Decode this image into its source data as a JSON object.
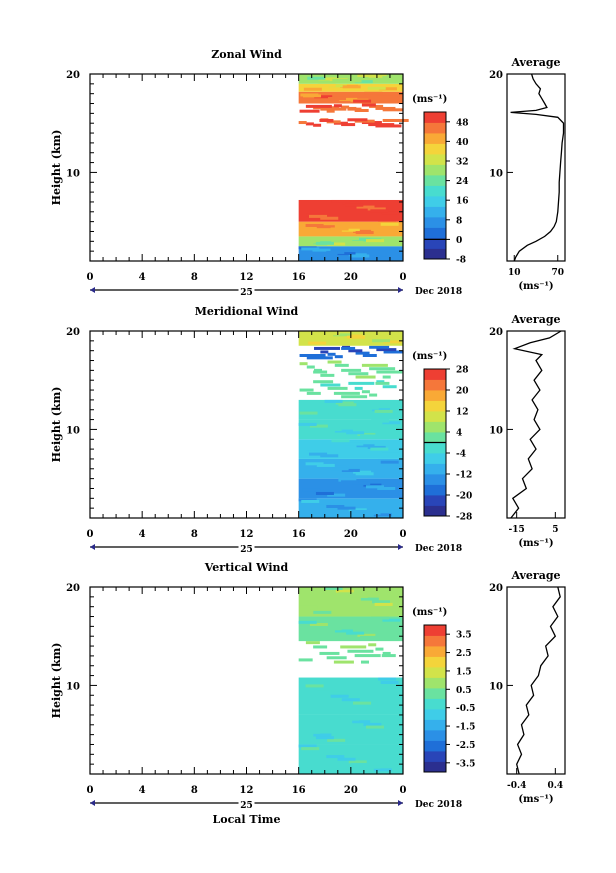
{
  "chart_data": [
    {
      "type": "heatmap",
      "title": "Zonal Wind",
      "ylabel": "Height (km)",
      "ylim": [
        1,
        20
      ],
      "yticks": [
        "10",
        "20"
      ],
      "xlim": [
        0,
        24
      ],
      "xticks": [
        "0",
        "4",
        "8",
        "12",
        "16",
        "20",
        "0"
      ],
      "date_day": "25",
      "date_label": "Dec 2018",
      "data_start_hour": 16,
      "colorbar": {
        "unit": "(ms⁻¹)",
        "vmin": -8,
        "vmax": 52,
        "ticks": [
          "-8",
          "0",
          "8",
          "16",
          "24",
          "32",
          "40",
          "48"
        ],
        "zero_line": 0
      },
      "layers": [
        {
          "z0": 1,
          "z1": 2.5,
          "value": 8
        },
        {
          "z0": 2.5,
          "z1": 3.5,
          "value": 28
        },
        {
          "z0": 3.5,
          "z1": 5,
          "value": 42
        },
        {
          "z0": 5,
          "z1": 7.2,
          "value": 48
        },
        {
          "z0": 14.5,
          "z1": 15.5,
          "value": 48,
          "sparse": true
        },
        {
          "z0": 16,
          "z1": 17,
          "value": 46,
          "sparse": true
        },
        {
          "z0": 17,
          "z1": 18.2,
          "value": 44
        },
        {
          "z0": 18.2,
          "z1": 19,
          "value": 38
        },
        {
          "z0": 19,
          "z1": 20,
          "value": 30
        }
      ],
      "profile": {
        "title": "Average",
        "xlim": [
          0,
          80
        ],
        "xticks": [
          "10",
          "70"
        ],
        "xlabel": "(ms⁻¹)",
        "points": [
          [
            10,
            1
          ],
          [
            12,
            1.4
          ],
          [
            17,
            2
          ],
          [
            28,
            2.6
          ],
          [
            40,
            3
          ],
          [
            52,
            3.5
          ],
          [
            60,
            4
          ],
          [
            65,
            4.5
          ],
          [
            68,
            5
          ],
          [
            70,
            6
          ],
          [
            71,
            7
          ],
          [
            72,
            8
          ],
          [
            72,
            9
          ],
          [
            73,
            10
          ],
          [
            74,
            11
          ],
          [
            75,
            12
          ],
          [
            76,
            13
          ],
          [
            78,
            14
          ],
          [
            78,
            15
          ],
          [
            70,
            15.6
          ],
          [
            40,
            15.9
          ],
          [
            5,
            16.1
          ],
          [
            40,
            16.3
          ],
          [
            55,
            16.6
          ],
          [
            52,
            17
          ],
          [
            48,
            17.5
          ],
          [
            44,
            18
          ],
          [
            46,
            18.5
          ],
          [
            40,
            19
          ],
          [
            36,
            19.5
          ],
          [
            34,
            20
          ]
        ]
      }
    },
    {
      "type": "heatmap",
      "title": "Meridional Wind",
      "ylabel": "Height (km)",
      "ylim": [
        1,
        20
      ],
      "yticks": [
        "10",
        "20"
      ],
      "xlim": [
        0,
        24
      ],
      "xticks": [
        "0",
        "4",
        "8",
        "12",
        "16",
        "20",
        "0"
      ],
      "date_day": "25",
      "date_label": "Dec 2018",
      "data_start_hour": 16,
      "colorbar": {
        "unit": "(ms⁻¹)",
        "vmin": -28,
        "vmax": 28,
        "ticks": [
          "-28",
          "-20",
          "-12",
          "-4",
          "4",
          "12",
          "20",
          "28"
        ],
        "zero_line": 0
      },
      "layers": [
        {
          "z0": 1,
          "z1": 3,
          "value": -12
        },
        {
          "z0": 3,
          "z1": 5,
          "value": -14
        },
        {
          "z0": 5,
          "z1": 7,
          "value": -10
        },
        {
          "z0": 7,
          "z1": 9,
          "value": -8
        },
        {
          "z0": 9,
          "z1": 11,
          "value": -4
        },
        {
          "z0": 11,
          "z1": 13,
          "value": -2
        },
        {
          "z0": 13,
          "z1": 15,
          "value": 0,
          "sparse": true
        },
        {
          "z0": 15,
          "z1": 17,
          "value": 2,
          "sparse": true
        },
        {
          "z0": 17,
          "z1": 18.5,
          "value": -20,
          "sparse": true
        },
        {
          "z0": 18.5,
          "z1": 20,
          "value": 10
        }
      ],
      "profile": {
        "title": "Average",
        "xlim": [
          -20,
          10
        ],
        "xticks": [
          "-15",
          "5"
        ],
        "xlabel": "(ms⁻¹)",
        "points": [
          [
            -18,
            1
          ],
          [
            -14,
            2
          ],
          [
            -17,
            3
          ],
          [
            -10,
            4
          ],
          [
            -12,
            5
          ],
          [
            -7,
            6
          ],
          [
            -9,
            7
          ],
          [
            -5,
            8
          ],
          [
            -8,
            9
          ],
          [
            -3,
            10
          ],
          [
            -6,
            11
          ],
          [
            -4,
            12
          ],
          [
            -7,
            13
          ],
          [
            -3,
            14
          ],
          [
            -6,
            15
          ],
          [
            -2,
            16
          ],
          [
            -5,
            17
          ],
          [
            -2,
            17.6
          ],
          [
            -16,
            18.2
          ],
          [
            -8,
            18.8
          ],
          [
            2,
            19.3
          ],
          [
            8,
            20
          ]
        ]
      }
    },
    {
      "type": "heatmap",
      "title": "Vertical Wind",
      "ylabel": "Height (km)",
      "ylim": [
        1,
        20
      ],
      "yticks": [
        "10",
        "20"
      ],
      "xlim": [
        0,
        24
      ],
      "xticks": [
        "0",
        "4",
        "8",
        "12",
        "16",
        "20",
        "0"
      ],
      "date_day": "25",
      "date_label": "Dec 2018",
      "xlabel": "Local Time",
      "data_start_hour": 16,
      "colorbar": {
        "unit": "(ms⁻¹)",
        "vmin": -4,
        "vmax": 4,
        "ticks": [
          "-3.5",
          "-2.5",
          "-1.5",
          "-0.5",
          "0.5",
          "1.5",
          "2.5",
          "3.5"
        ],
        "zero_line": null
      },
      "layers": [
        {
          "z0": 1,
          "z1": 4,
          "value": -0.3
        },
        {
          "z0": 4,
          "z1": 7,
          "value": -0.5
        },
        {
          "z0": 7,
          "z1": 10.8,
          "value": -0.4
        },
        {
          "z0": 12,
          "z1": 14.5,
          "value": 0.3,
          "sparse": true
        },
        {
          "z0": 14.5,
          "z1": 17,
          "value": 0.2
        },
        {
          "z0": 17,
          "z1": 20,
          "value": 0.6
        }
      ],
      "profile": {
        "title": "Average",
        "xlim": [
          -0.6,
          0.6
        ],
        "xticks": [
          "-0.4",
          "0.4"
        ],
        "xlabel": "(ms⁻¹)",
        "points": [
          [
            -0.35,
            1
          ],
          [
            -0.4,
            2
          ],
          [
            -0.3,
            3
          ],
          [
            -0.38,
            4
          ],
          [
            -0.25,
            5
          ],
          [
            -0.3,
            6
          ],
          [
            -0.15,
            7
          ],
          [
            -0.2,
            8
          ],
          [
            -0.05,
            9
          ],
          [
            -0.1,
            10
          ],
          [
            0.05,
            11
          ],
          [
            0.1,
            12
          ],
          [
            0.25,
            13
          ],
          [
            0.2,
            14
          ],
          [
            0.4,
            15
          ],
          [
            0.3,
            16
          ],
          [
            0.45,
            17
          ],
          [
            0.35,
            18
          ],
          [
            0.5,
            19
          ],
          [
            0.45,
            20
          ]
        ]
      }
    }
  ]
}
